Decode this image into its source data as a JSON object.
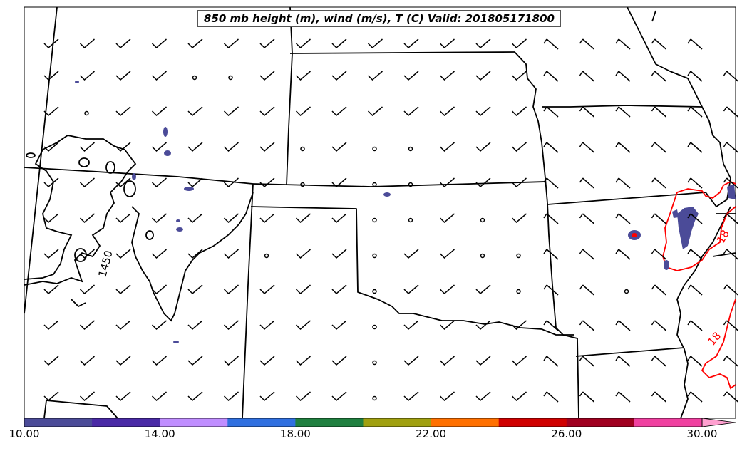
{
  "title": "850 mb height (m), wind (m/s), T (C) Valid: 201805171800",
  "height_contour_label": "1450",
  "temperature_contour_labels": [
    "18",
    "18"
  ],
  "colorbar": {
    "ticks": [
      "10.00",
      "14.00",
      "18.00",
      "22.00",
      "26.00",
      "30.00"
    ],
    "min": 10,
    "max": 30,
    "extend": "max",
    "colors": [
      "#4b4b98",
      "#4a2aa6",
      "#c08eff",
      "#3070e0",
      "#208040",
      "#a0a010",
      "#ff7000",
      "#d00000",
      "#a00020",
      "#f040a0",
      "#ffa0d0"
    ]
  },
  "colors": {
    "height_contour": "#000000",
    "temperature_contour": "#ff0000",
    "state_borders": "#000000"
  }
}
